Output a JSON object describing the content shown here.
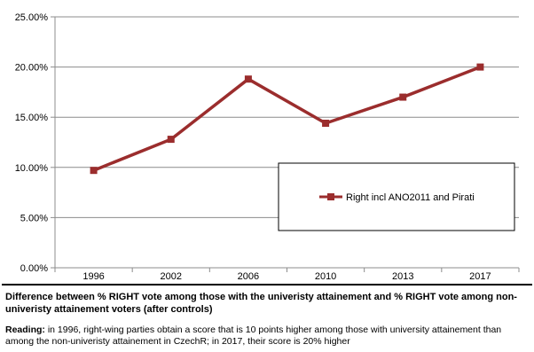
{
  "chart_data": {
    "type": "line",
    "x": [
      "1996",
      "2002",
      "2006",
      "2010",
      "2013",
      "2017"
    ],
    "series": [
      {
        "name": "Right incl ANO2011 and Pirati",
        "values": [
          9.7,
          12.8,
          18.8,
          14.4,
          17.0,
          20.0
        ],
        "color": "#9B2D2D"
      }
    ],
    "ylim": [
      0,
      25
    ],
    "yticks": [
      "0.00%",
      "5.00%",
      "10.00%",
      "15.00%",
      "20.00%",
      "25.00%"
    ],
    "ytick_values": [
      0,
      5,
      10,
      15,
      20,
      25
    ],
    "grid": true,
    "legend_position": "inside-right",
    "marker": "square"
  },
  "caption": {
    "title": "Difference between % RIGHT vote among those with the univeristy attainement and % RIGHT vote among non-univeristy attainement voters (after controls)",
    "reading_label": "Reading:",
    "reading_text": " in 1996, right-wing parties obtain a score that is 10 points higher among those with university attainement than among the non-univeristy attainement in CzechR; in 2017, their score is 20% higher"
  }
}
